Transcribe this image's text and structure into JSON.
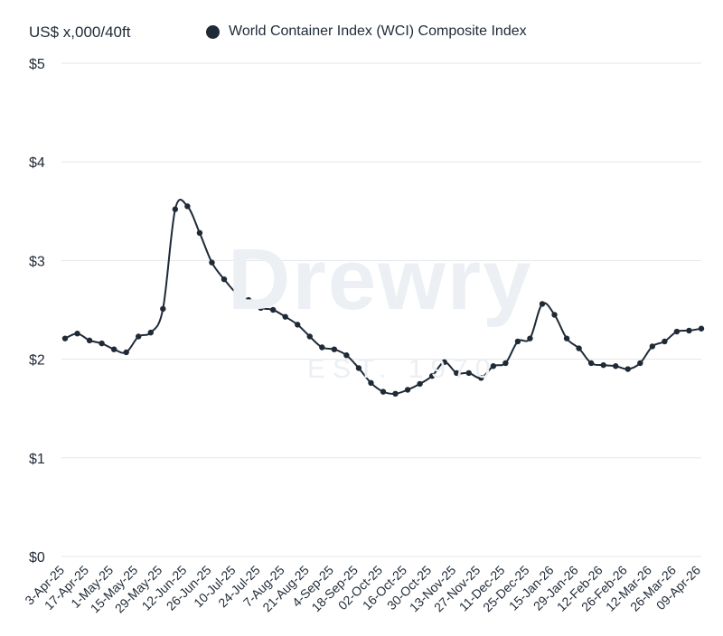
{
  "header": {
    "unit_label": "US$ x,000/40ft",
    "legend_label": "World Container Index (WCI) Composite Index"
  },
  "watermark": {
    "brand": "Drewry",
    "sub": "EST. 1970"
  },
  "colors": {
    "series": "#1f2a37",
    "grid": "#e3e6ea",
    "watermark": "#eceff3"
  },
  "chart_data": {
    "type": "line",
    "title": "",
    "xlabel": "",
    "ylabel": "US$ x,000/40ft",
    "ylim": [
      0,
      5
    ],
    "yticks": [
      0,
      1,
      2,
      3,
      4,
      5
    ],
    "ytick_labels": [
      "$0",
      "$1",
      "$2",
      "$3",
      "$4",
      "$5"
    ],
    "grid": true,
    "legend_position": "top",
    "xtick_labels": [
      "3-Apr-25",
      "17-Apr-25",
      "1-May-25",
      "15-May-25",
      "29-May-25",
      "12-Jun-25",
      "26-Jun-25",
      "10-Jul-25",
      "24-Jul-25",
      "7-Aug-25",
      "21-Aug-25",
      "4-Sep-25",
      "18-Sep-25",
      "02-Oct-25",
      "16-Oct-25",
      "30-Oct-25",
      "13-Nov-25",
      "27-Nov-25",
      "11-Dec-25",
      "25-Dec-25",
      "15-Jan-26",
      "29-Jan-26",
      "12-Feb-26",
      "26-Feb-26",
      "12-Mar-26",
      "26-Mar-26",
      "09-Apr-26"
    ],
    "series": [
      {
        "name": "World Container Index (WCI) Composite Index",
        "values": [
          2.21,
          2.26,
          2.19,
          2.16,
          2.1,
          2.07,
          2.23,
          2.27,
          2.51,
          3.52,
          3.55,
          3.28,
          2.98,
          2.81,
          2.67,
          2.6,
          2.52,
          2.5,
          2.43,
          2.35,
          2.23,
          2.12,
          2.1,
          2.04,
          1.91,
          1.76,
          1.67,
          1.65,
          1.69,
          1.75,
          1.83,
          1.97,
          1.86,
          1.86,
          1.81,
          1.93,
          1.96,
          2.18,
          2.21,
          2.56,
          2.45,
          2.21,
          2.11,
          1.96,
          1.94,
          1.93,
          1.9,
          1.96,
          2.13,
          2.18,
          2.28,
          2.29,
          2.31
        ]
      }
    ]
  }
}
